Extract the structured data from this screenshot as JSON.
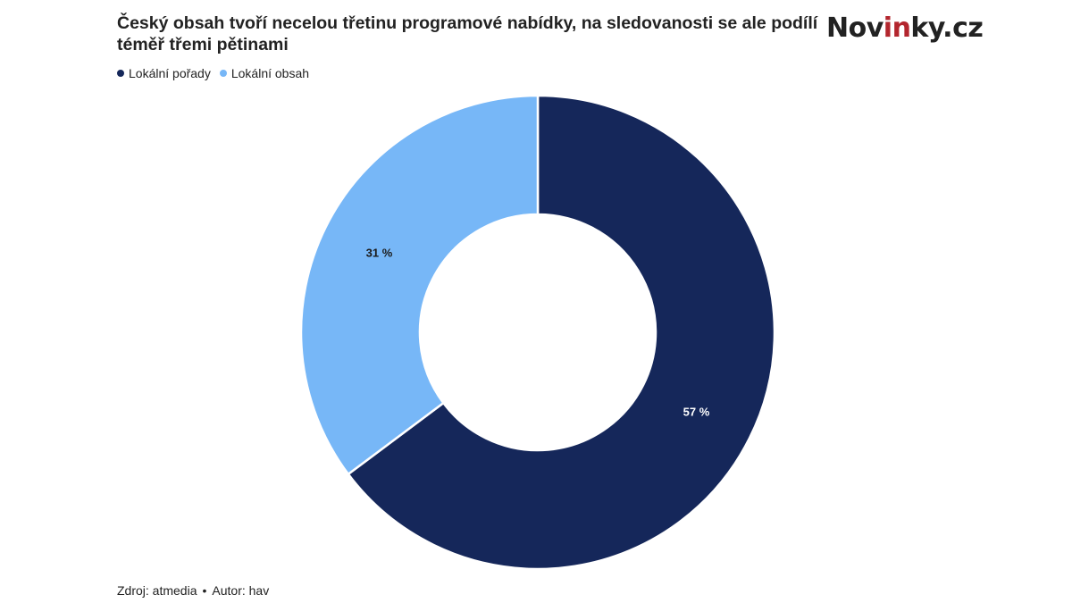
{
  "header": {
    "title": "Český obsah tvoří necelou třetinu programové nabídky, na sledovanosti se ale podílí téměř třemi pětinami",
    "logo_main": "Nov",
    "logo_accent": "in",
    "logo_rest": "ky.cz"
  },
  "footer": {
    "source": "Zdroj: atmedia",
    "separator": "•",
    "author": "Autor: hav"
  },
  "chart_data": {
    "type": "pie",
    "donut": true,
    "legend_position": "top-left",
    "series": [
      {
        "name": "Lokální pořady",
        "value": 57,
        "label": "57 %",
        "color": "#15275a",
        "label_color": "#ffffff"
      },
      {
        "name": "Lokální obsah",
        "value": 31,
        "label": "31 %",
        "color": "#77b7f7",
        "label_color": "#1a1a1a"
      }
    ]
  }
}
